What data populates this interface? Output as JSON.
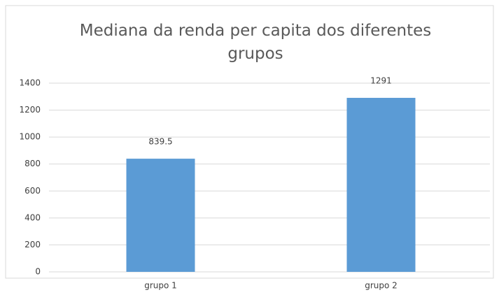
{
  "chart_data": {
    "type": "bar",
    "title": "Mediana da renda per capita dos diferentes grupos",
    "categories": [
      "grupo 1",
      "grupo 2"
    ],
    "values": [
      839.5,
      1291
    ],
    "color": "#5b9bd5",
    "ylim": [
      0,
      1400
    ],
    "yticks": [
      0,
      200,
      400,
      600,
      800,
      1000,
      1200,
      1400
    ],
    "grid": true
  }
}
